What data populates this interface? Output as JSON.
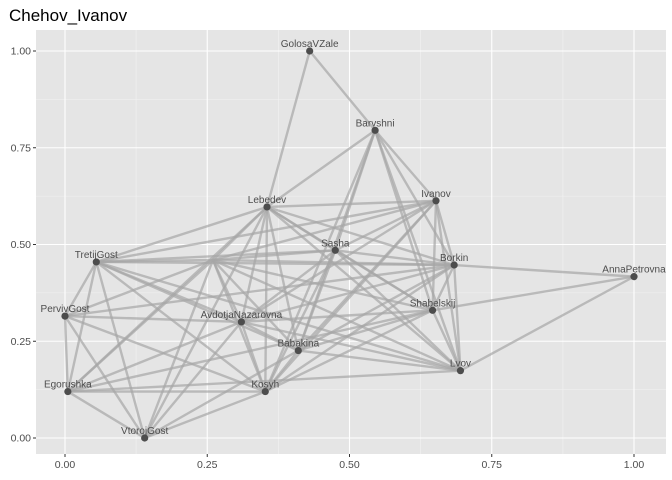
{
  "chart_data": {
    "type": "network",
    "title": "Chehov_Ivanov",
    "xlabel": "",
    "ylabel": "",
    "xlim": [
      -0.05,
      1.05
    ],
    "ylim": [
      -0.02,
      1.04
    ],
    "x_ticks": [
      0.0,
      0.25,
      0.5,
      0.75,
      1.0
    ],
    "y_ticks": [
      0.0,
      0.25,
      0.5,
      0.75,
      1.0
    ],
    "x_tick_labels": [
      "0.00",
      "0.25",
      "0.50",
      "0.75",
      "1.00"
    ],
    "y_tick_labels": [
      "0.00",
      "0.25",
      "0.50",
      "0.75",
      "1.00"
    ],
    "grid": true,
    "colors": {
      "panel": "#e5e5e5",
      "grid": "#ffffff",
      "edge": "#a6a6a6",
      "node": "#4d4d4d"
    },
    "nodes": [
      {
        "name": "GolosaVZale",
        "x": 0.43,
        "y": 1.0
      },
      {
        "name": "Barvshni",
        "x": 0.545,
        "y": 0.795
      },
      {
        "name": "Ivanov",
        "x": 0.652,
        "y": 0.613
      },
      {
        "name": "Lebedev",
        "x": 0.355,
        "y": 0.597
      },
      {
        "name": "Sasha",
        "x": 0.475,
        "y": 0.485
      },
      {
        "name": "Borkin",
        "x": 0.684,
        "y": 0.447
      },
      {
        "name": "AnnaPetrovna",
        "x": 1.0,
        "y": 0.417
      },
      {
        "name": "TretijGost",
        "x": 0.055,
        "y": 0.455
      },
      {
        "name": "Shabelskij",
        "x": 0.646,
        "y": 0.33
      },
      {
        "name": "PervivGost",
        "x": 0.0,
        "y": 0.315
      },
      {
        "name": "AvdotjaNazarovna",
        "x": 0.31,
        "y": 0.3
      },
      {
        "name": "Babakina",
        "x": 0.41,
        "y": 0.226
      },
      {
        "name": "Lvov",
        "x": 0.695,
        "y": 0.174
      },
      {
        "name": "Egorushka",
        "x": 0.005,
        "y": 0.12
      },
      {
        "name": "Kosyh",
        "x": 0.352,
        "y": 0.12
      },
      {
        "name": "VtorojGost",
        "x": 0.14,
        "y": 0.0
      }
    ],
    "hidden_node": {
      "x": 0.26,
      "y": 0.46
    },
    "edges": [
      [
        "GolosaVZale",
        "Lebedev"
      ],
      [
        "GolosaVZale",
        "Barvshni"
      ],
      [
        "Barvshni",
        "Lebedev"
      ],
      [
        "Barvshni",
        "Ivanov"
      ],
      [
        "Barvshni",
        "Borkin"
      ],
      [
        "Barvshni",
        "Shabelskij"
      ],
      [
        "Barvshni",
        "Lvov"
      ],
      [
        "Barvshni",
        "Babakina"
      ],
      [
        "Barvshni",
        "Kosyh"
      ],
      [
        "Barvshni",
        "Sasha"
      ],
      [
        "Ivanov",
        "Lebedev"
      ],
      [
        "Ivanov",
        "Sasha"
      ],
      [
        "Ivanov",
        "Borkin"
      ],
      [
        "Ivanov",
        "Shabelskij"
      ],
      [
        "Ivanov",
        "Lvov"
      ],
      [
        "Ivanov",
        "Babakina"
      ],
      [
        "Ivanov",
        "Kosyh"
      ],
      [
        "Ivanov",
        "AvdotjaNazarovna"
      ],
      [
        "Ivanov",
        "TretijGost"
      ],
      [
        "Lebedev",
        "Sasha"
      ],
      [
        "Lebedev",
        "Borkin"
      ],
      [
        "Lebedev",
        "Shabelskij"
      ],
      [
        "Lebedev",
        "Lvov"
      ],
      [
        "Lebedev",
        "Babakina"
      ],
      [
        "Lebedev",
        "Kosyh"
      ],
      [
        "Lebedev",
        "AvdotjaNazarovna"
      ],
      [
        "Lebedev",
        "Egorushka"
      ],
      [
        "Lebedev",
        "VtorojGost"
      ],
      [
        "Lebedev",
        "TretijGost"
      ],
      [
        "Sasha",
        "Borkin"
      ],
      [
        "Sasha",
        "Shabelskij"
      ],
      [
        "Sasha",
        "Lvov"
      ],
      [
        "Sasha",
        "Babakina"
      ],
      [
        "Sasha",
        "Kosyh"
      ],
      [
        "Sasha",
        "AvdotjaNazarovna"
      ],
      [
        "Sasha",
        "TretijGost"
      ],
      [
        "Borkin",
        "AnnaPetrovna"
      ],
      [
        "Borkin",
        "Shabelskij"
      ],
      [
        "Borkin",
        "Lvov"
      ],
      [
        "Borkin",
        "Babakina"
      ],
      [
        "Borkin",
        "Kosyh"
      ],
      [
        "Borkin",
        "AvdotjaNazarovna"
      ],
      [
        "Borkin",
        "TretijGost"
      ],
      [
        "Borkin",
        "PervivGost"
      ],
      [
        "AnnaPetrovna",
        "Lvov"
      ],
      [
        "AnnaPetrovna",
        "Shabelskij"
      ],
      [
        "Shabelskij",
        "Lvov"
      ],
      [
        "Shabelskij",
        "Babakina"
      ],
      [
        "Shabelskij",
        "Kosyh"
      ],
      [
        "Shabelskij",
        "AvdotjaNazarovna"
      ],
      [
        "Shabelskij",
        "Egorushka"
      ],
      [
        "Lvov",
        "Babakina"
      ],
      [
        "Lvov",
        "AvdotjaNazarovna"
      ],
      [
        "Lvov",
        "Egorushka"
      ],
      [
        "Lvov",
        "TretijGost"
      ],
      [
        "AvdotjaNazarovna",
        "Babakina"
      ],
      [
        "AvdotjaNazarovna",
        "Kosyh"
      ],
      [
        "AvdotjaNazarovna",
        "TretijGost"
      ],
      [
        "AvdotjaNazarovna",
        "PervivGost"
      ],
      [
        "AvdotjaNazarovna",
        "Egorushka"
      ],
      [
        "AvdotjaNazarovna",
        "VtorojGost"
      ],
      [
        "Babakina",
        "Kosyh"
      ],
      [
        "Babakina",
        "TretijGost"
      ],
      [
        "Babakina",
        "VtorojGost"
      ],
      [
        "Kosyh",
        "Egorushka"
      ],
      [
        "Kosyh",
        "TretijGost"
      ],
      [
        "Kosyh",
        "PervivGost"
      ],
      [
        "Kosyh",
        "VtorojGost"
      ],
      [
        "TretijGost",
        "PervivGost"
      ],
      [
        "TretijGost",
        "Egorushka"
      ],
      [
        "TretijGost",
        "VtorojGost"
      ],
      [
        "PervivGost",
        "Egorushka"
      ],
      [
        "PervivGost",
        "VtorojGost"
      ],
      [
        "Egorushka",
        "VtorojGost"
      ],
      [
        "@hidden",
        "Sasha"
      ],
      [
        "@hidden",
        "Ivanov"
      ],
      [
        "@hidden",
        "Lebedev"
      ],
      [
        "@hidden",
        "Borkin"
      ],
      [
        "@hidden",
        "Shabelskij"
      ],
      [
        "@hidden",
        "Lvov"
      ],
      [
        "@hidden",
        "Babakina"
      ],
      [
        "@hidden",
        "Kosyh"
      ],
      [
        "@hidden",
        "AvdotjaNazarovna"
      ],
      [
        "@hidden",
        "Egorushka"
      ],
      [
        "@hidden",
        "VtorojGost"
      ],
      [
        "@hidden",
        "PervivGost"
      ],
      [
        "@hidden",
        "TretijGost"
      ]
    ]
  }
}
